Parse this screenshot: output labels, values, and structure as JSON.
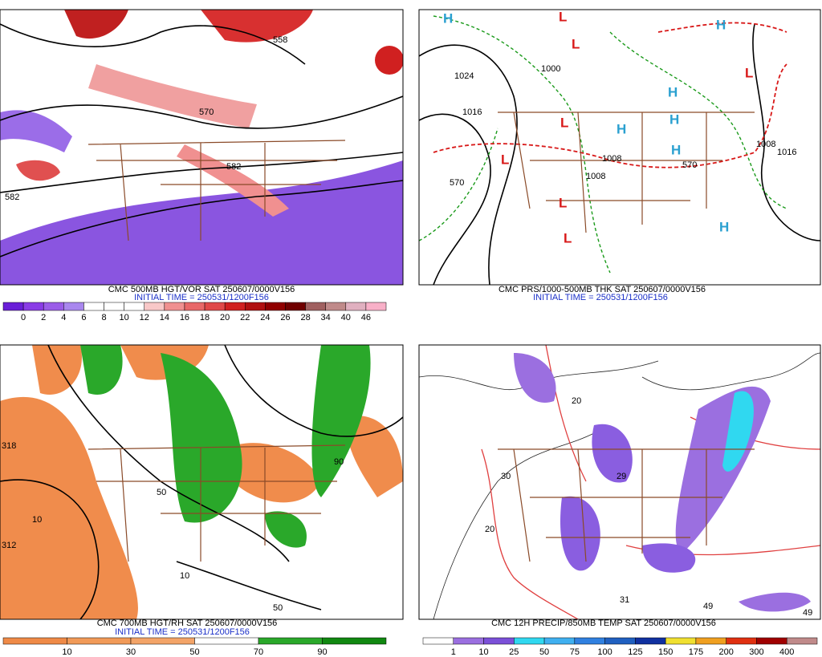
{
  "panels": [
    {
      "title": "CMC 500MB HGT/VOR SAT 250607/0000V156",
      "initial_time": "INITIAL TIME = 250531/1200F156",
      "contour_labels": [
        "558",
        "570",
        "582",
        "582"
      ],
      "colorbar": {
        "labels": [
          "0",
          "2",
          "4",
          "6",
          "8",
          "10",
          "12",
          "14",
          "16",
          "18",
          "20",
          "22",
          "24",
          "26",
          "28",
          "34",
          "40",
          "46"
        ],
        "colors": [
          "#6a1fd8",
          "#8a3ce6",
          "#9b5de8",
          "#a987ee",
          "#ffffff",
          "#ffffff",
          "#ffffff",
          "#f8c8c8",
          "#f09090",
          "#e86868",
          "#e04848",
          "#d02020",
          "#b01010",
          "#900000",
          "#700000",
          "#a06060",
          "#c08a8a",
          "#e0b0c0",
          "#f8b0c8"
        ]
      }
    },
    {
      "title": "CMC PRS/1000-500MB THK SAT 250607/0000V156",
      "initial_time": "INITIAL TIME = 250531/1200F156",
      "contour_labels": [
        "1024",
        "1016",
        "1008",
        "1000",
        "1008",
        "1016",
        "570",
        "570",
        "1008"
      ],
      "centers": [
        "H",
        "H",
        "H",
        "H",
        "H",
        "H",
        "H",
        "L",
        "L",
        "L",
        "L",
        "L",
        "L",
        "L"
      ]
    },
    {
      "title": "CMC 700MB HGT/RH SAT 250607/0000V156",
      "initial_time": "INITIAL TIME = 250531/1200F156",
      "contour_labels": [
        "318",
        "312",
        "10",
        "50",
        "90",
        "50",
        "10"
      ],
      "colorbar": {
        "labels": [
          "10",
          "30",
          "50",
          "70",
          "90"
        ],
        "colors": [
          "#ef8a47",
          "#f19a58",
          "#f3a468",
          "#ffffff",
          "#2aa82a",
          "#118811"
        ]
      }
    },
    {
      "title": "CMC 12H PRECIP/850MB TEMP SAT 250607/0000V156",
      "contour_labels": [
        "20",
        "30",
        "20",
        "49",
        "29",
        "31",
        "49"
      ],
      "colorbar": {
        "labels": [
          "1",
          "10",
          "25",
          "50",
          "75",
          "100",
          "125",
          "150",
          "175",
          "200",
          "300",
          "400"
        ],
        "colors": [
          "#ffffff",
          "#9b6fe0",
          "#7b50d8",
          "#30d8f0",
          "#40b0f0",
          "#3080e0",
          "#2060c0",
          "#1030a0",
          "#f0e030",
          "#f0a020",
          "#e03010",
          "#a00000",
          "#c08a8a"
        ]
      }
    }
  ]
}
